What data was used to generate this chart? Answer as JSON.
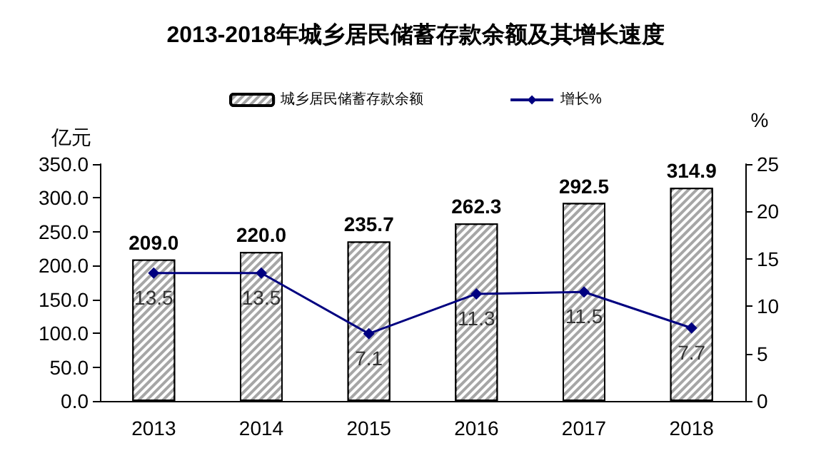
{
  "chart_data": {
    "type": "bar",
    "title": "2013-2018年城乡居民储蓄存款余额及其增长速度",
    "ylabel": "亿元",
    "y2label": "%",
    "categories": [
      "2013",
      "2014",
      "2015",
      "2016",
      "2017",
      "2018"
    ],
    "series": [
      {
        "name": "城乡居民储蓄存款余额",
        "color": "#a6a6a6",
        "values": [
          209.0,
          220.0,
          235.7,
          262.3,
          292.5,
          314.9
        ],
        "value_labels": [
          "209.0",
          "220.0",
          "235.7",
          "262.3",
          "292.5",
          "314.9"
        ]
      },
      {
        "name": "增长%",
        "type": "line",
        "axis": "y2",
        "color": "#000080",
        "values": [
          13.5,
          13.5,
          7.1,
          11.3,
          11.5,
          7.7
        ]
      }
    ],
    "ylim": [
      0,
      350
    ],
    "yticks": [
      {
        "value": 0,
        "label": "0.0"
      },
      {
        "value": 50,
        "label": "50.0"
      },
      {
        "value": 100,
        "label": "100.0"
      },
      {
        "value": 150,
        "label": "150.0"
      },
      {
        "value": 200,
        "label": "200.0"
      },
      {
        "value": 250,
        "label": "250.0"
      },
      {
        "value": 300,
        "label": "300.0"
      },
      {
        "value": 350,
        "label": "350.0"
      }
    ],
    "y2lim": [
      0,
      25
    ],
    "y2ticks": [
      0,
      5,
      10,
      15,
      20,
      25
    ],
    "data_labels": true,
    "legend": "top",
    "grid": false,
    "marker": "diamond"
  }
}
